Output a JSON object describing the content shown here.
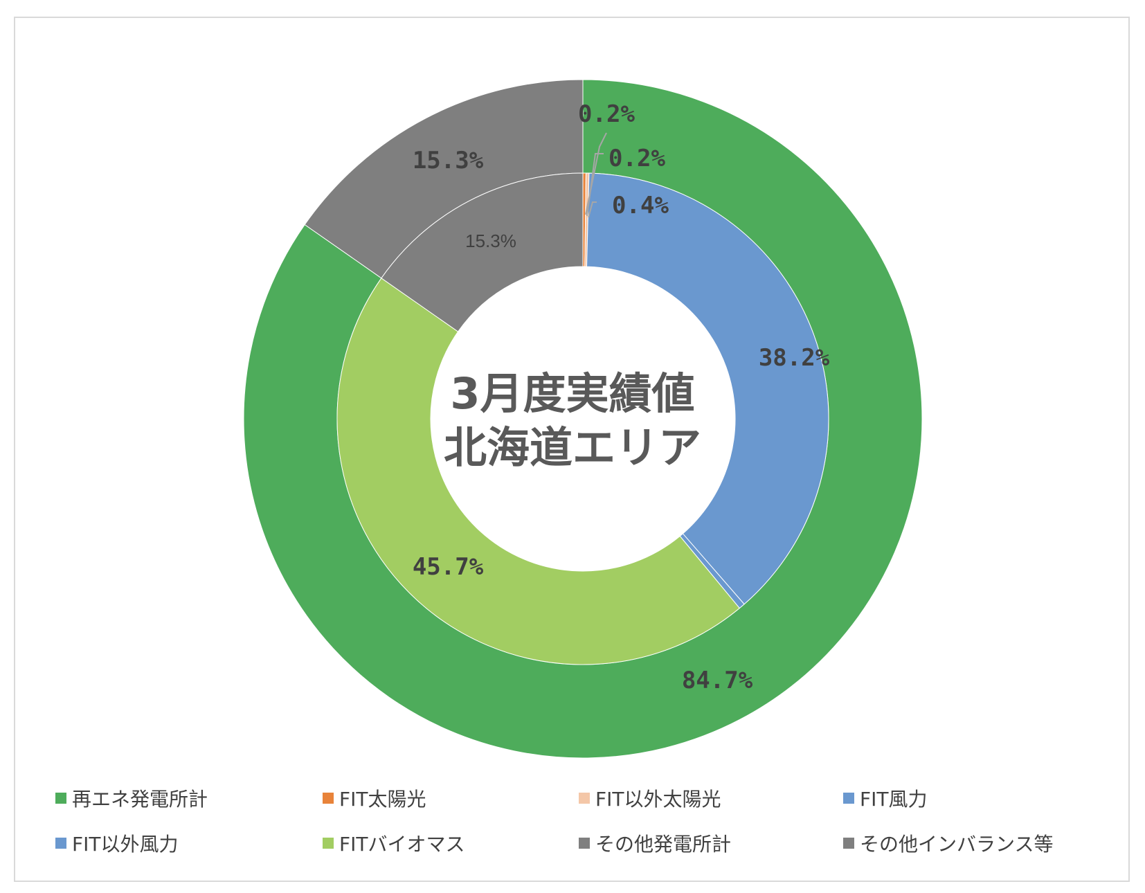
{
  "chart_data": {
    "type": "pie",
    "subtype": "double-doughnut",
    "title_lines": [
      "3月度実績値",
      "北海道エリア"
    ],
    "legend": {
      "position": "bottom",
      "items": [
        {
          "label": "再エネ発電所計",
          "color": "#4EAC5B"
        },
        {
          "label": "FIT太陽光",
          "color": "#E8833A"
        },
        {
          "label": "FIT以外太陽光",
          "color": "#F4C7A8"
        },
        {
          "label": "FIT風力",
          "color": "#6A98CF"
        },
        {
          "label": "FIT以外風力",
          "color": "#6A98CF"
        },
        {
          "label": "FITバイオマス",
          "color": "#A2CD62"
        },
        {
          "label": "その他発電所計",
          "color": "#7F7F7F"
        },
        {
          "label": "その他インバランス等",
          "color": "#7F7F7F"
        }
      ]
    },
    "outer_ring": [
      {
        "name": "再エネ発電所計",
        "value": 84.7,
        "label": "84.7%",
        "color": "#4EAC5B"
      },
      {
        "name": "その他発電所計",
        "value": 15.3,
        "label": "15.3%",
        "color": "#7F7F7F"
      }
    ],
    "inner_ring": [
      {
        "name": "FIT太陽光",
        "value": 0.2,
        "label": "0.2%",
        "color": "#E8833A"
      },
      {
        "name": "FIT以外太陽光",
        "value": 0.2,
        "label": "0.2%",
        "color": "#F4C7A8"
      },
      {
        "name": "FIT風力",
        "value": 38.2,
        "label": "38.2%",
        "color": "#6A98CF"
      },
      {
        "name": "FIT以外風力",
        "value": 0.4,
        "label": "0.4%",
        "color": "#6A98CF"
      },
      {
        "name": "FITバイオマス",
        "value": 45.7,
        "label": "45.7%",
        "color": "#A2CD62"
      },
      {
        "name": "その他インバランス等",
        "value": 15.3,
        "label": "15.3%",
        "color": "#7F7F7F"
      }
    ]
  }
}
